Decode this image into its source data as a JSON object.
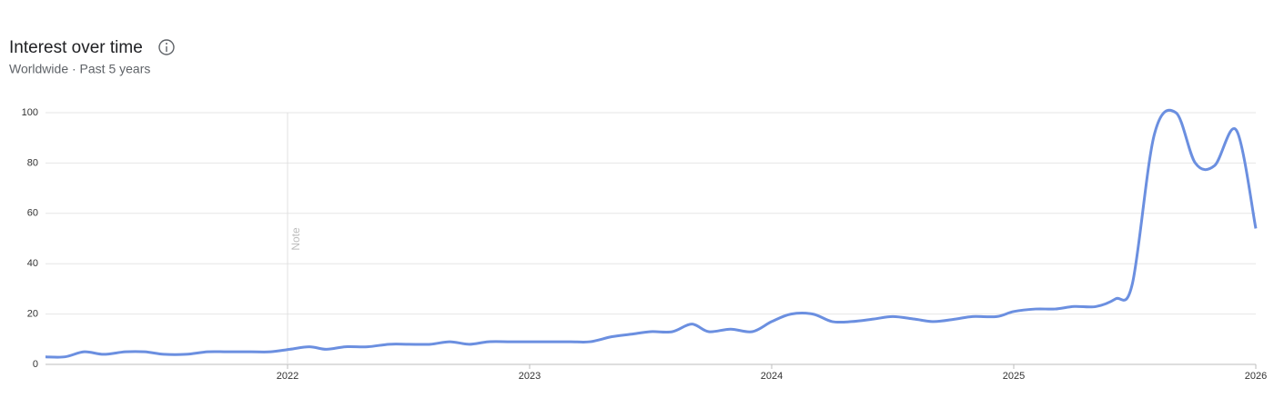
{
  "chart_data": {
    "type": "line",
    "title": "Interest over time",
    "subtitle": "Worldwide · Past 5 years",
    "x": [
      2021.0,
      2021.08,
      2021.16,
      2021.24,
      2021.33,
      2021.41,
      2021.49,
      2021.58,
      2021.67,
      2021.75,
      2021.85,
      2021.93,
      2022.01,
      2022.09,
      2022.16,
      2022.24,
      2022.33,
      2022.42,
      2022.5,
      2022.59,
      2022.67,
      2022.75,
      2022.83,
      2022.92,
      2023.0,
      2023.08,
      2023.17,
      2023.25,
      2023.34,
      2023.42,
      2023.5,
      2023.59,
      2023.67,
      2023.74,
      2023.83,
      2023.92,
      2024.0,
      2024.08,
      2024.17,
      2024.25,
      2024.33,
      2024.42,
      2024.5,
      2024.59,
      2024.67,
      2024.76,
      2024.83,
      2024.93,
      2025.0,
      2025.09,
      2025.17,
      2025.25,
      2025.34,
      2025.42,
      2025.49,
      2025.58,
      2025.67,
      2025.75,
      2025.83,
      2025.92,
      2026.0
    ],
    "values": [
      3,
      3,
      5,
      4,
      5,
      5,
      4,
      4,
      5,
      5,
      5,
      5,
      6,
      7,
      6,
      7,
      7,
      8,
      8,
      8,
      9,
      8,
      9,
      9,
      9,
      9,
      9,
      9,
      11,
      12,
      13,
      13,
      16,
      13,
      14,
      13,
      17,
      20,
      20,
      17,
      17,
      18,
      19,
      18,
      17,
      18,
      19,
      19,
      21,
      22,
      22,
      23,
      23,
      26,
      32,
      91,
      100,
      80,
      79,
      93,
      54
    ],
    "color": "#6b8fe0",
    "xlim": [
      2021,
      2026
    ],
    "xticks": [
      2022,
      2023,
      2024,
      2025,
      2026
    ],
    "ylim": [
      0,
      100
    ],
    "yticks": [
      0,
      20,
      40,
      60,
      80,
      100
    ],
    "grid": true,
    "annotations": [
      {
        "x": 2022,
        "text": "Note"
      }
    ]
  }
}
